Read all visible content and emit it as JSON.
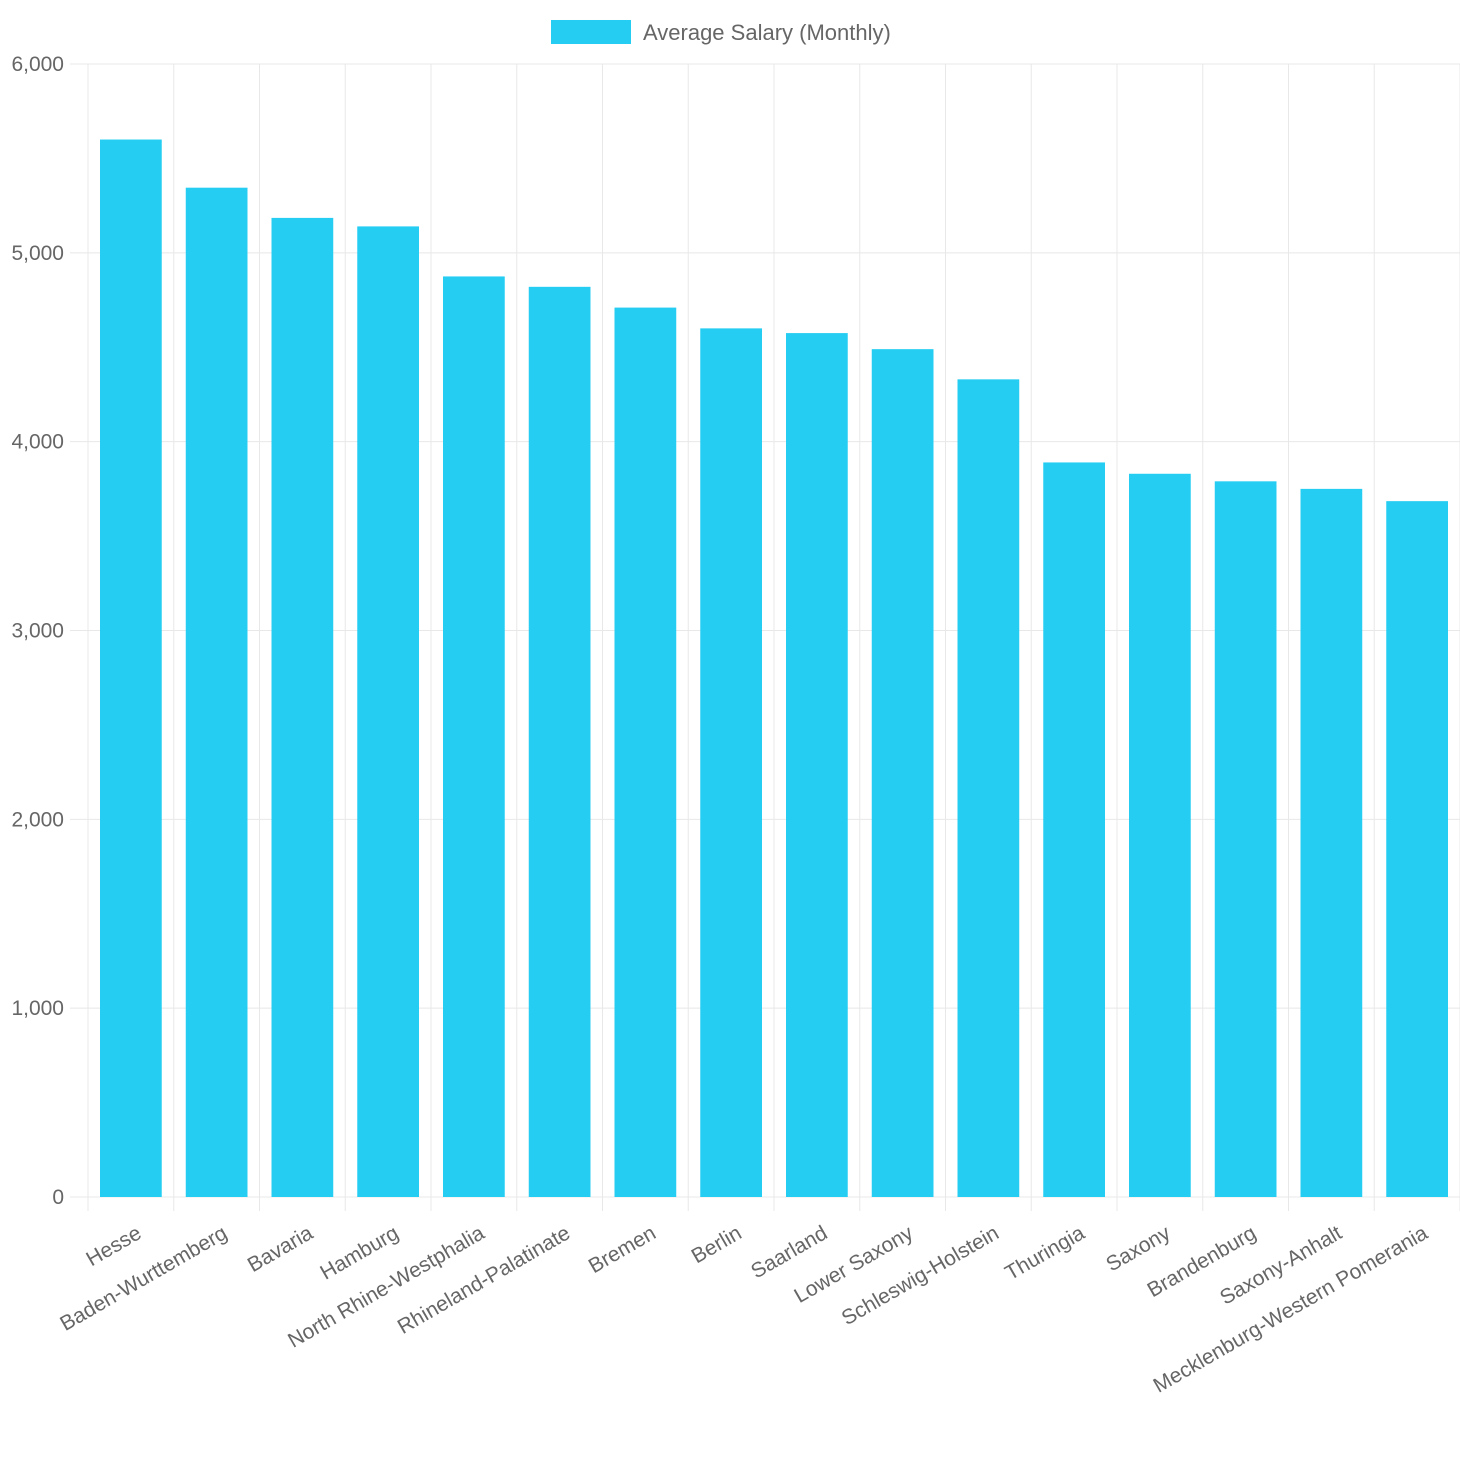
{
  "chart_data": {
    "type": "bar",
    "categories": [
      "Hesse",
      "Baden-Wurttemberg",
      "Bavaria",
      "Hamburg",
      "North Rhine-Westphalia",
      "Rhineland-Palatinate",
      "Bremen",
      "Berlin",
      "Saarland",
      "Lower Saxony",
      "Schleswig-Holstein",
      "Thuringia",
      "Saxony",
      "Brandenburg",
      "Saxony-Anhalt",
      "Mecklenburg-Western Pomerania"
    ],
    "series": [
      {
        "name": "Average Salary (Monthly)",
        "values": [
          5600,
          5345,
          5185,
          5140,
          4875,
          4820,
          4710,
          4600,
          4575,
          4490,
          4330,
          3890,
          3830,
          3790,
          3750,
          3685
        ]
      }
    ],
    "yticks": [
      "0",
      "1,000",
      "2,000",
      "3,000",
      "4,000",
      "5,000",
      "6,000"
    ],
    "ylim": [
      0,
      6000
    ],
    "grid": true,
    "legend_position": "top-center",
    "colors": {
      "bar": "#26cdf2",
      "grid": "#e8e8e8",
      "text": "#666666"
    }
  }
}
